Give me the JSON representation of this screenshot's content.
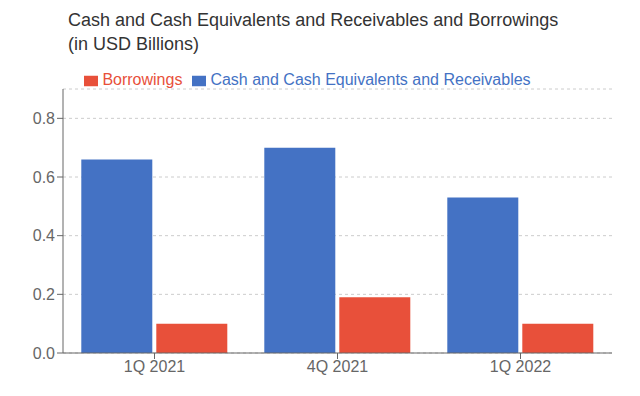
{
  "chart_data": {
    "type": "bar",
    "title": "Cash and Cash Equivalents and Receivables and Borrowings",
    "subtitle": "(in USD Billions)",
    "categories": [
      "1Q 2021",
      "4Q 2021",
      "1Q 2022"
    ],
    "series": [
      {
        "name": "Cash and Cash Equivalents and Receivables",
        "color": "#4472C4",
        "values": [
          0.66,
          0.7,
          0.53
        ]
      },
      {
        "name": "Borrowings",
        "color": "#E8503A",
        "values": [
          0.1,
          0.19,
          0.1
        ]
      }
    ],
    "ylim": [
      0,
      0.9
    ],
    "yticks": [
      {
        "value": 0,
        "label": "0.0"
      },
      0.2,
      0.4,
      0.6,
      0.8
    ],
    "grid": true,
    "legend": "top"
  }
}
